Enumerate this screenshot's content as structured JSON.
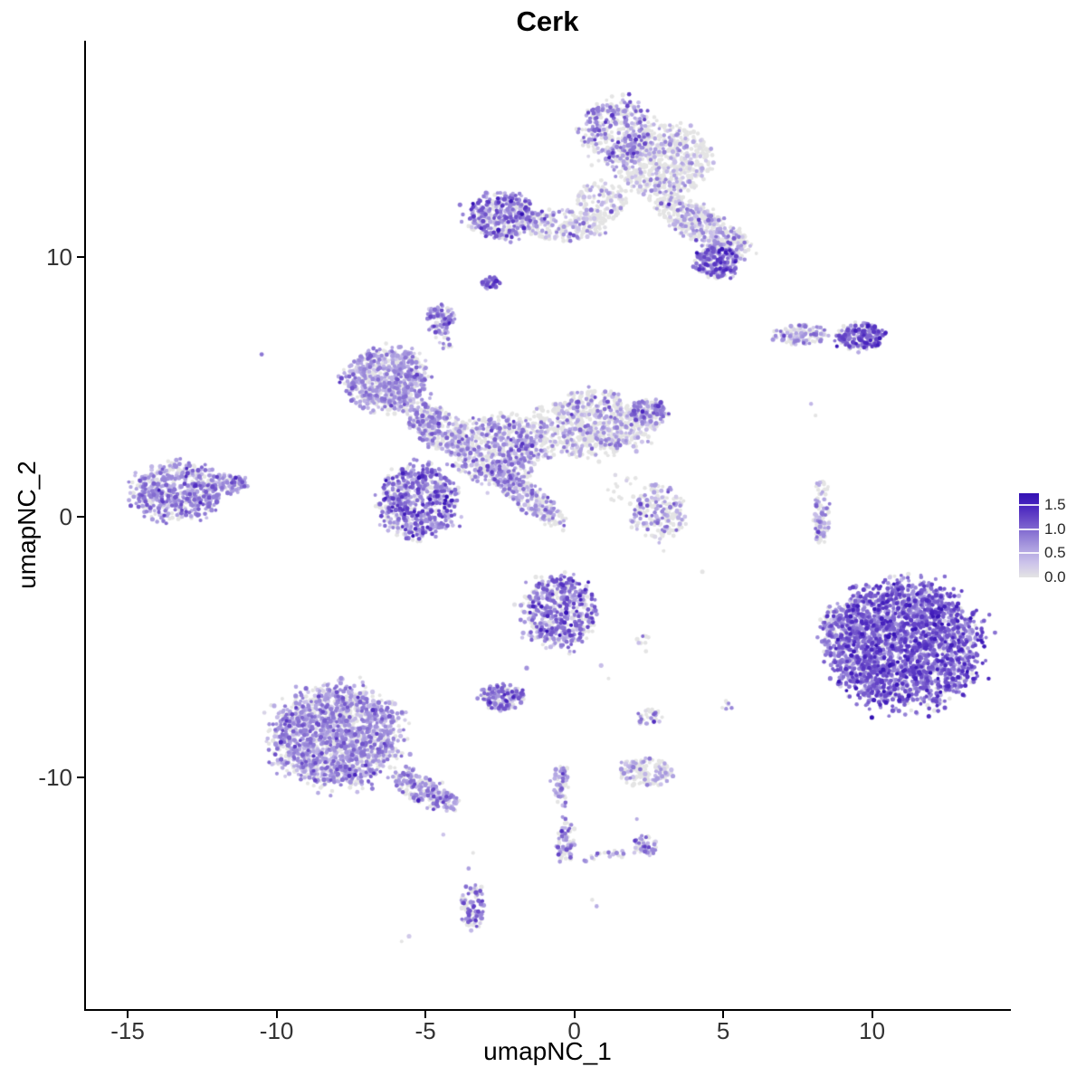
{
  "chart_data": {
    "type": "scatter",
    "title": "Cerk",
    "xlabel": "umapNC_1",
    "ylabel": "umapNC_2",
    "xlim": [
      -16.4,
      14.6
    ],
    "ylim": [
      -18.9,
      18.3
    ],
    "grid": false,
    "x_ticks": [
      {
        "value": -15,
        "label": "-15"
      },
      {
        "value": -10,
        "label": "-10"
      },
      {
        "value": -5,
        "label": "-5"
      },
      {
        "value": 0,
        "label": "0"
      },
      {
        "value": 5,
        "label": "5"
      },
      {
        "value": 10,
        "label": "10"
      }
    ],
    "y_ticks": [
      {
        "value": 10,
        "label": "10"
      },
      {
        "value": 0,
        "label": "0"
      },
      {
        "value": -10,
        "label": "-10"
      }
    ],
    "legend": {
      "position": "right",
      "range": [
        0,
        1.75
      ],
      "tick_labels": [
        "1.5",
        "1.0",
        "0.5",
        "0.0"
      ],
      "tick_values": [
        1.5,
        1.0,
        0.5,
        0.0
      ]
    },
    "colorscale": {
      "zero_color": "#E4E4E4",
      "high_color": "#3412B4",
      "stops": [
        [
          0,
          "#E4E4E4"
        ],
        [
          0.3,
          "#CCC3EA"
        ],
        [
          0.6,
          "#ADA0E0"
        ],
        [
          0.9,
          "#8C77D4"
        ],
        [
          1.2,
          "#6A4BC8"
        ],
        [
          1.5,
          "#4723BE"
        ],
        [
          1.75,
          "#3412B4"
        ]
      ]
    },
    "point_radius": 2.2,
    "clusters": [
      {
        "name": "top-islet-west",
        "cx": 1.4,
        "cy": 14.8,
        "rx": 1.15,
        "ry": 1.25,
        "rot": 0,
        "n": 380,
        "p0": 0.38,
        "mu": 0.7,
        "sigma": 0.3
      },
      {
        "name": "top-islet-east",
        "cx": 3.0,
        "cy": 13.7,
        "rx": 1.5,
        "ry": 1.35,
        "rot": 20,
        "n": 600,
        "p0": 0.72,
        "mu": 0.45,
        "sigma": 0.25
      },
      {
        "name": "top-bridge",
        "cx": 0.9,
        "cy": 12.1,
        "rx": 0.85,
        "ry": 0.8,
        "rot": 0,
        "n": 130,
        "p0": 0.7,
        "mu": 0.4,
        "sigma": 0.25
      },
      {
        "name": "upper-arm",
        "cx": 4.3,
        "cy": 11.2,
        "rx": 1.8,
        "ry": 0.6,
        "rot": -33,
        "n": 420,
        "p0": 0.6,
        "mu": 0.5,
        "sigma": 0.3
      },
      {
        "name": "upper-arm-knob",
        "cx": 4.8,
        "cy": 9.8,
        "rx": 0.75,
        "ry": 0.65,
        "rot": 0,
        "n": 220,
        "p0": 0.18,
        "mu": 0.9,
        "sigma": 0.35
      },
      {
        "name": "upper-mid-islet",
        "cx": -2.4,
        "cy": 11.6,
        "rx": 1.15,
        "ry": 0.85,
        "rot": 0,
        "n": 380,
        "p0": 0.28,
        "mu": 0.75,
        "sigma": 0.35
      },
      {
        "name": "upper-mid-east",
        "cx": -0.3,
        "cy": 11.2,
        "rx": 1.3,
        "ry": 0.6,
        "rot": 0,
        "n": 200,
        "p0": 0.58,
        "mu": 0.5,
        "sigma": 0.3
      },
      {
        "name": "tiny-knot",
        "cx": -2.8,
        "cy": 9.0,
        "rx": 0.28,
        "ry": 0.25,
        "rot": 0,
        "n": 45,
        "p0": 0.15,
        "mu": 0.9,
        "sigma": 0.35
      },
      {
        "name": "north-islet",
        "cx": -4.5,
        "cy": 7.6,
        "rx": 0.45,
        "ry": 0.55,
        "rot": 0,
        "n": 100,
        "p0": 0.25,
        "mu": 0.8,
        "sigma": 0.3
      },
      {
        "name": "north-islet-stem",
        "cx": -4.4,
        "cy": 6.7,
        "rx": 0.3,
        "ry": 0.5,
        "rot": 0,
        "n": 14,
        "p0": 0.45,
        "mu": 0.6,
        "sigma": 0.3
      },
      {
        "name": "west-mid-cluster",
        "cx": -6.3,
        "cy": 5.3,
        "rx": 1.35,
        "ry": 1.15,
        "rot": 0,
        "n": 720,
        "p0": 0.33,
        "mu": 0.58,
        "sigma": 0.26
      },
      {
        "name": "central-bridge-nw",
        "cx": -4.6,
        "cy": 3.4,
        "rx": 1.2,
        "ry": 0.65,
        "rot": -40,
        "n": 320,
        "p0": 0.42,
        "mu": 0.6,
        "sigma": 0.28
      },
      {
        "name": "central-west-core",
        "cx": -5.2,
        "cy": 0.6,
        "rx": 1.25,
        "ry": 1.35,
        "rot": 0,
        "n": 620,
        "p0": 0.22,
        "mu": 0.8,
        "sigma": 0.38
      },
      {
        "name": "central-mid",
        "cx": -2.5,
        "cy": 2.6,
        "rx": 1.55,
        "ry": 1.3,
        "rot": 0,
        "n": 620,
        "p0": 0.45,
        "mu": 0.6,
        "sigma": 0.3
      },
      {
        "name": "central-east",
        "cx": 0.6,
        "cy": 3.6,
        "rx": 1.8,
        "ry": 1.2,
        "rot": 0,
        "n": 700,
        "p0": 0.62,
        "mu": 0.5,
        "sigma": 0.28
      },
      {
        "name": "central-east-knob",
        "cx": 2.5,
        "cy": 4.0,
        "rx": 0.6,
        "ry": 0.5,
        "rot": 0,
        "n": 130,
        "p0": 0.35,
        "mu": 0.7,
        "sigma": 0.3
      },
      {
        "name": "central-diagonal",
        "cx": -1.6,
        "cy": 0.8,
        "rx": 1.6,
        "ry": 0.45,
        "rot": -42,
        "n": 260,
        "p0": 0.5,
        "mu": 0.55,
        "sigma": 0.3
      },
      {
        "name": "far-west-cluster",
        "cx": -13.3,
        "cy": 1.0,
        "rx": 1.5,
        "ry": 1.05,
        "rot": 0,
        "n": 560,
        "p0": 0.28,
        "mu": 0.68,
        "sigma": 0.32
      },
      {
        "name": "far-west-arm",
        "cx": -11.6,
        "cy": 1.25,
        "rx": 0.6,
        "ry": 0.35,
        "rot": 0,
        "n": 90,
        "p0": 0.35,
        "mu": 0.65,
        "sigma": 0.3
      },
      {
        "name": "east-islet-west",
        "cx": 7.6,
        "cy": 7.0,
        "rx": 0.85,
        "ry": 0.38,
        "rot": 0,
        "n": 130,
        "p0": 0.5,
        "mu": 0.55,
        "sigma": 0.3
      },
      {
        "name": "east-islet-east",
        "cx": 9.6,
        "cy": 6.95,
        "rx": 0.8,
        "ry": 0.48,
        "rot": 0,
        "n": 200,
        "p0": 0.15,
        "mu": 0.95,
        "sigma": 0.35
      },
      {
        "name": "east-strand",
        "cx": 8.3,
        "cy": 0.2,
        "rx": 0.28,
        "ry": 1.3,
        "rot": 0,
        "n": 95,
        "p0": 0.5,
        "mu": 0.6,
        "sigma": 0.3
      },
      {
        "name": "southeast-core",
        "cx": 11.1,
        "cy": -4.9,
        "rx": 2.45,
        "ry": 2.35,
        "rot": 0,
        "n": 2300,
        "p0": 0.1,
        "mu": 0.95,
        "sigma": 0.32
      },
      {
        "name": "southeast-spur",
        "cx": 8.8,
        "cy": -4.3,
        "rx": 0.5,
        "ry": 0.9,
        "rot": 0,
        "n": 120,
        "p0": 0.3,
        "mu": 0.7,
        "sigma": 0.3
      },
      {
        "name": "south-central-islet",
        "cx": -0.5,
        "cy": -3.6,
        "rx": 1.2,
        "ry": 1.4,
        "rot": 0,
        "n": 470,
        "p0": 0.22,
        "mu": 0.8,
        "sigma": 0.35
      },
      {
        "name": "south-small-west",
        "cx": -2.4,
        "cy": -6.9,
        "rx": 0.7,
        "ry": 0.5,
        "rot": 0,
        "n": 160,
        "p0": 0.28,
        "mu": 0.8,
        "sigma": 0.3
      },
      {
        "name": "south-dots",
        "cx": 2.35,
        "cy": -4.85,
        "rx": 0.3,
        "ry": 0.4,
        "rot": 0,
        "n": 9,
        "p0": 0.5,
        "mu": 0.6,
        "sigma": 0.3
      },
      {
        "name": "south-mini",
        "cx": 2.5,
        "cy": -7.7,
        "rx": 0.4,
        "ry": 0.35,
        "rot": 0,
        "n": 34,
        "p0": 0.5,
        "mu": 0.6,
        "sigma": 0.3
      },
      {
        "name": "south-mini-east",
        "cx": 5.05,
        "cy": -7.2,
        "rx": 0.25,
        "ry": 0.25,
        "rot": 0,
        "n": 7,
        "p0": 0.5,
        "mu": 0.55,
        "sigma": 0.3
      },
      {
        "name": "south-islet",
        "cx": 2.4,
        "cy": -9.8,
        "rx": 0.9,
        "ry": 0.5,
        "rot": 0,
        "n": 160,
        "p0": 0.66,
        "mu": 0.5,
        "sigma": 0.28
      },
      {
        "name": "southwest-core",
        "cx": -8.0,
        "cy": -8.4,
        "rx": 2.1,
        "ry": 1.85,
        "rot": 0,
        "n": 1650,
        "p0": 0.3,
        "mu": 0.62,
        "sigma": 0.28
      },
      {
        "name": "southwest-tail",
        "cx": -5.0,
        "cy": -10.5,
        "rx": 1.3,
        "ry": 0.5,
        "rot": -33,
        "n": 220,
        "p0": 0.35,
        "mu": 0.68,
        "sigma": 0.3
      },
      {
        "name": "south-strand-a",
        "cx": -0.45,
        "cy": -10.3,
        "rx": 0.28,
        "ry": 0.75,
        "rot": 0,
        "n": 65,
        "p0": 0.4,
        "mu": 0.68,
        "sigma": 0.3
      },
      {
        "name": "south-strand-b",
        "cx": -0.3,
        "cy": -12.4,
        "rx": 0.3,
        "ry": 0.8,
        "rot": 0,
        "n": 65,
        "p0": 0.4,
        "mu": 0.68,
        "sigma": 0.3
      },
      {
        "name": "south-chain",
        "cx": 1.1,
        "cy": -13.0,
        "rx": 0.95,
        "ry": 0.18,
        "rot": 13,
        "n": 20,
        "p0": 0.45,
        "mu": 0.6,
        "sigma": 0.3
      },
      {
        "name": "south-chain-knot",
        "cx": 2.4,
        "cy": -12.6,
        "rx": 0.45,
        "ry": 0.4,
        "rot": 0,
        "n": 55,
        "p0": 0.4,
        "mu": 0.65,
        "sigma": 0.3
      },
      {
        "name": "bottom-islet",
        "cx": -3.4,
        "cy": -15.0,
        "rx": 0.4,
        "ry": 0.85,
        "rot": 0,
        "n": 95,
        "p0": 0.3,
        "mu": 0.75,
        "sigma": 0.3
      },
      {
        "name": "mid-east-sparse",
        "cx": 2.8,
        "cy": 0.2,
        "rx": 0.85,
        "ry": 1.0,
        "rot": 0,
        "n": 190,
        "p0": 0.52,
        "mu": 0.6,
        "sigma": 0.3
      },
      {
        "name": "mid-sparse-north",
        "cx": 1.6,
        "cy": 1.2,
        "rx": 0.5,
        "ry": 0.8,
        "rot": 0,
        "n": 15,
        "p0": 0.7,
        "mu": 0.4,
        "sigma": 0.25
      }
    ],
    "singles": [
      [
        -10.5,
        6.25,
        0.9
      ],
      [
        4.3,
        -2.1,
        0
      ],
      [
        3.0,
        -1.3,
        0
      ],
      [
        0.6,
        -14.7,
        0
      ],
      [
        0.75,
        -14.95,
        0.5
      ],
      [
        -5.8,
        -16.3,
        0
      ],
      [
        -5.55,
        -16.1,
        0.25
      ],
      [
        7.95,
        4.35,
        0.4
      ],
      [
        8.1,
        3.9,
        0
      ],
      [
        -1.6,
        -5.8,
        0.7
      ],
      [
        0.9,
        -5.7,
        0.35
      ],
      [
        1.15,
        -6.2,
        0
      ],
      [
        -3.4,
        -12.9,
        0
      ],
      [
        -3.55,
        -13.5,
        0.6
      ],
      [
        2.1,
        -11.6,
        0.5
      ],
      [
        -4.4,
        -12.2,
        0.3
      ]
    ]
  }
}
